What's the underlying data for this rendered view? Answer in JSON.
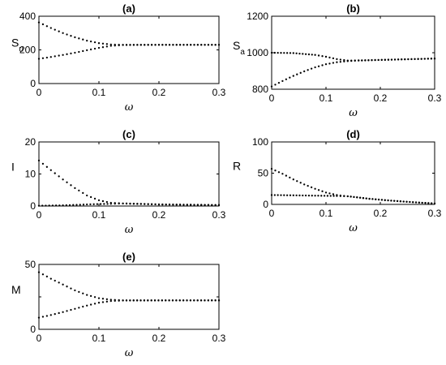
{
  "chart_data": [
    {
      "id": "a",
      "type": "scatter",
      "title": "(a)",
      "xlabel": "ω",
      "ylabel_main": "S",
      "ylabel_sub": "u",
      "xlim": [
        0,
        0.3
      ],
      "ylim": [
        0,
        400
      ],
      "xticks": [
        0,
        0.1,
        0.2,
        0.3
      ],
      "xtick_labels": [
        "0",
        "0.1",
        "0.2",
        "0.3"
      ],
      "yticks": [
        0,
        200,
        400
      ],
      "ytick_labels": [
        "0",
        "200",
        "400"
      ],
      "branches": [
        {
          "points": [
            [
              0,
              363
            ],
            [
              0.02,
              330
            ],
            [
              0.04,
              300
            ],
            [
              0.06,
              275
            ],
            [
              0.08,
              255
            ],
            [
              0.1,
              240
            ],
            [
              0.12,
              232
            ],
            [
              0.14,
              230
            ],
            [
              0.2,
              230
            ],
            [
              0.3,
              230
            ]
          ]
        },
        {
          "points": [
            [
              0,
              147
            ],
            [
              0.02,
              158
            ],
            [
              0.04,
              170
            ],
            [
              0.06,
              183
            ],
            [
              0.08,
              198
            ],
            [
              0.1,
              212
            ],
            [
              0.12,
              224
            ],
            [
              0.14,
              229
            ],
            [
              0.2,
              230
            ],
            [
              0.3,
              230
            ]
          ]
        }
      ]
    },
    {
      "id": "b",
      "type": "scatter",
      "title": "(b)",
      "xlabel": "ω",
      "ylabel_main": "S",
      "ylabel_sub": "a",
      "xlim": [
        0,
        0.3
      ],
      "ylim": [
        800,
        1200
      ],
      "xticks": [
        0,
        0.1,
        0.2,
        0.3
      ],
      "xtick_labels": [
        "0",
        "0.1",
        "0.2",
        "0.3"
      ],
      "yticks": [
        800,
        1000,
        1200
      ],
      "ytick_labels": [
        "800",
        "1000",
        "1200"
      ],
      "branches": [
        {
          "points": [
            [
              0,
              1000
            ],
            [
              0.04,
              998
            ],
            [
              0.08,
              988
            ],
            [
              0.1,
              978
            ],
            [
              0.12,
              965
            ],
            [
              0.14,
              957
            ],
            [
              0.16,
              958
            ],
            [
              0.3,
              968
            ]
          ]
        },
        {
          "points": [
            [
              0,
              815
            ],
            [
              0.02,
              845
            ],
            [
              0.04,
              873
            ],
            [
              0.06,
              898
            ],
            [
              0.08,
              920
            ],
            [
              0.1,
              937
            ],
            [
              0.12,
              948
            ],
            [
              0.14,
              954
            ],
            [
              0.16,
              957
            ],
            [
              0.3,
              968
            ]
          ]
        }
      ]
    },
    {
      "id": "c",
      "type": "scatter",
      "title": "(c)",
      "xlabel": "ω",
      "ylabel_main": "I",
      "ylabel_sub": "",
      "xlim": [
        0,
        0.3
      ],
      "ylim": [
        0,
        20
      ],
      "xticks": [
        0,
        0.1,
        0.2,
        0.3
      ],
      "xtick_labels": [
        "0",
        "0.1",
        "0.2",
        "0.3"
      ],
      "yticks": [
        0,
        10,
        20
      ],
      "ytick_labels": [
        "0",
        "10",
        "20"
      ],
      "branches": [
        {
          "points": [
            [
              0,
              14.2
            ],
            [
              0.02,
              11.2
            ],
            [
              0.04,
              8.3
            ],
            [
              0.06,
              5.6
            ],
            [
              0.08,
              3.3
            ],
            [
              0.1,
              1.8
            ],
            [
              0.12,
              1.0
            ],
            [
              0.14,
              0.8
            ],
            [
              0.2,
              0.5
            ],
            [
              0.3,
              0.3
            ]
          ]
        },
        {
          "points": [
            [
              0,
              0.1
            ],
            [
              0.04,
              0.2
            ],
            [
              0.08,
              0.5
            ],
            [
              0.12,
              0.7
            ],
            [
              0.14,
              0.8
            ],
            [
              0.2,
              0.5
            ],
            [
              0.3,
              0.3
            ]
          ]
        }
      ]
    },
    {
      "id": "d",
      "type": "scatter",
      "title": "(d)",
      "xlabel": "ω",
      "ylabel_main": "R",
      "ylabel_sub": "",
      "xlim": [
        0,
        0.3
      ],
      "ylim": [
        0,
        100
      ],
      "xticks": [
        0,
        0.1,
        0.2,
        0.3
      ],
      "xtick_labels": [
        "0",
        "0.1",
        "0.2",
        "0.3"
      ],
      "yticks": [
        0,
        50,
        100
      ],
      "ytick_labels": [
        "0",
        "50",
        "100"
      ],
      "branches": [
        {
          "points": [
            [
              0,
              57
            ],
            [
              0.02,
              49
            ],
            [
              0.04,
              40
            ],
            [
              0.06,
              32
            ],
            [
              0.08,
              25
            ],
            [
              0.1,
              19
            ],
            [
              0.12,
              15
            ],
            [
              0.14,
              13
            ],
            [
              0.18,
              9
            ],
            [
              0.22,
              6
            ],
            [
              0.26,
              3.5
            ],
            [
              0.3,
              1.5
            ]
          ]
        },
        {
          "points": [
            [
              0,
              15
            ],
            [
              0.04,
              14.5
            ],
            [
              0.08,
              14
            ],
            [
              0.12,
              13.5
            ],
            [
              0.14,
              13
            ],
            [
              0.18,
              9
            ],
            [
              0.22,
              6
            ],
            [
              0.26,
              3.5
            ],
            [
              0.3,
              1.5
            ]
          ]
        }
      ]
    },
    {
      "id": "e",
      "type": "scatter",
      "title": "(e)",
      "xlabel": "ω",
      "ylabel_main": "M",
      "ylabel_sub": "",
      "xlim": [
        0,
        0.3
      ],
      "ylim": [
        0,
        50
      ],
      "xticks": [
        0,
        0.1,
        0.2,
        0.3
      ],
      "xtick_labels": [
        "0",
        "0.1",
        "0.2",
        "0.3"
      ],
      "yticks": [
        0,
        25,
        50
      ],
      "ytick_labels": [
        "0",
        "",
        "50"
      ],
      "branches": [
        {
          "points": [
            [
              0,
              44
            ],
            [
              0.02,
              39
            ],
            [
              0.04,
              34.5
            ],
            [
              0.06,
              30
            ],
            [
              0.08,
              26.5
            ],
            [
              0.1,
              24
            ],
            [
              0.12,
              22.8
            ],
            [
              0.14,
              22.3
            ],
            [
              0.3,
              22.3
            ]
          ]
        },
        {
          "points": [
            [
              0,
              9
            ],
            [
              0.02,
              11
            ],
            [
              0.04,
              13.3
            ],
            [
              0.06,
              15.8
            ],
            [
              0.08,
              18.3
            ],
            [
              0.1,
              20.5
            ],
            [
              0.12,
              21.8
            ],
            [
              0.14,
              22.2
            ],
            [
              0.3,
              22.3
            ]
          ]
        }
      ]
    }
  ]
}
